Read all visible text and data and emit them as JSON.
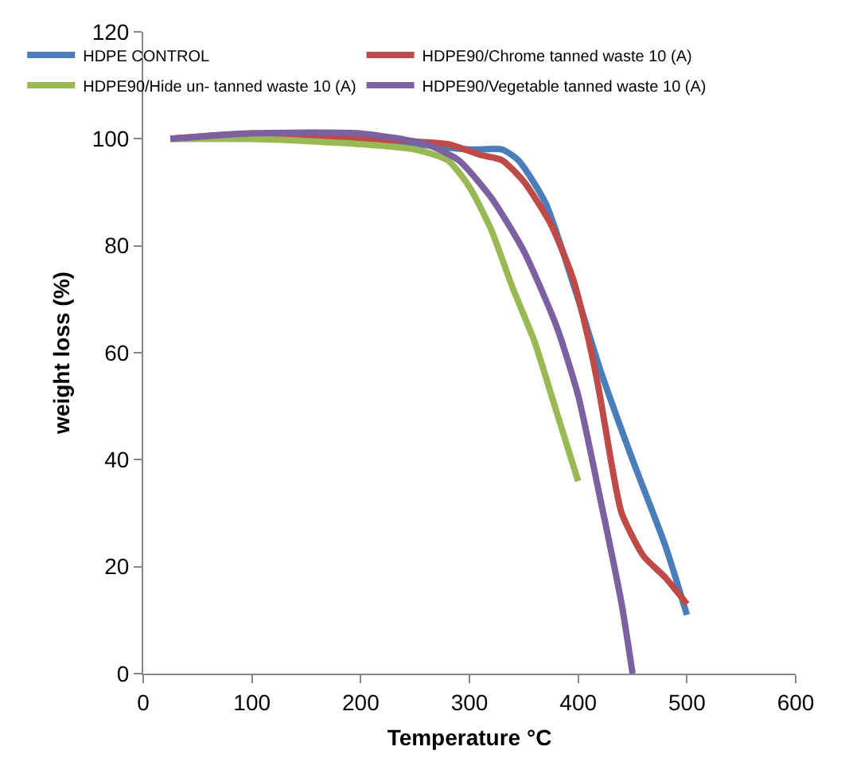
{
  "chart_data": {
    "type": "line",
    "xlabel": "Temperature °C",
    "ylabel": "weight loss (%)",
    "xlim": [
      0,
      600
    ],
    "xticks": [
      0,
      100,
      200,
      300,
      400,
      500,
      600
    ],
    "ylim": [
      0,
      120
    ],
    "yticks": [
      0,
      20,
      40,
      60,
      80,
      100,
      120
    ],
    "grid": false,
    "legend": "top",
    "marker": "none",
    "line_style": "solid",
    "series": [
      {
        "name": "HDPE CONTROL",
        "color": "#4a7ebb",
        "x": [
          25,
          100,
          200,
          300,
          330,
          345,
          370,
          400,
          420,
          450,
          480,
          500
        ],
        "values": [
          100,
          100,
          100,
          98,
          98,
          96,
          88,
          70,
          57,
          40,
          24,
          11
        ]
      },
      {
        "name": "HDPE90/Chrome tanned waste 10 (A)",
        "color": "#be4b48",
        "x": [
          25,
          100,
          200,
          280,
          310,
          330,
          350,
          375,
          395,
          410,
          420,
          430,
          440,
          460,
          480,
          500
        ],
        "values": [
          100,
          101,
          100,
          99,
          97,
          96,
          92,
          84,
          74,
          62,
          52,
          40,
          30,
          22,
          18,
          13
        ]
      },
      {
        "name": "HDPE90/Hide un- tanned waste 10 (A)",
        "color": "#98b954",
        "x": [
          25,
          100,
          200,
          250,
          280,
          300,
          320,
          340,
          360,
          380,
          400
        ],
        "values": [
          100,
          100,
          99,
          98,
          96,
          91,
          83,
          72,
          62,
          49,
          36
        ]
      },
      {
        "name": "HDPE90/Vegetable tanned waste 10 (A)",
        "color": "#7d60a0",
        "x": [
          25,
          100,
          200,
          260,
          290,
          320,
          350,
          380,
          400,
          420,
          440,
          450
        ],
        "values": [
          100,
          101,
          101,
          99,
          96,
          89,
          79,
          65,
          52,
          33,
          13,
          0
        ]
      }
    ]
  }
}
